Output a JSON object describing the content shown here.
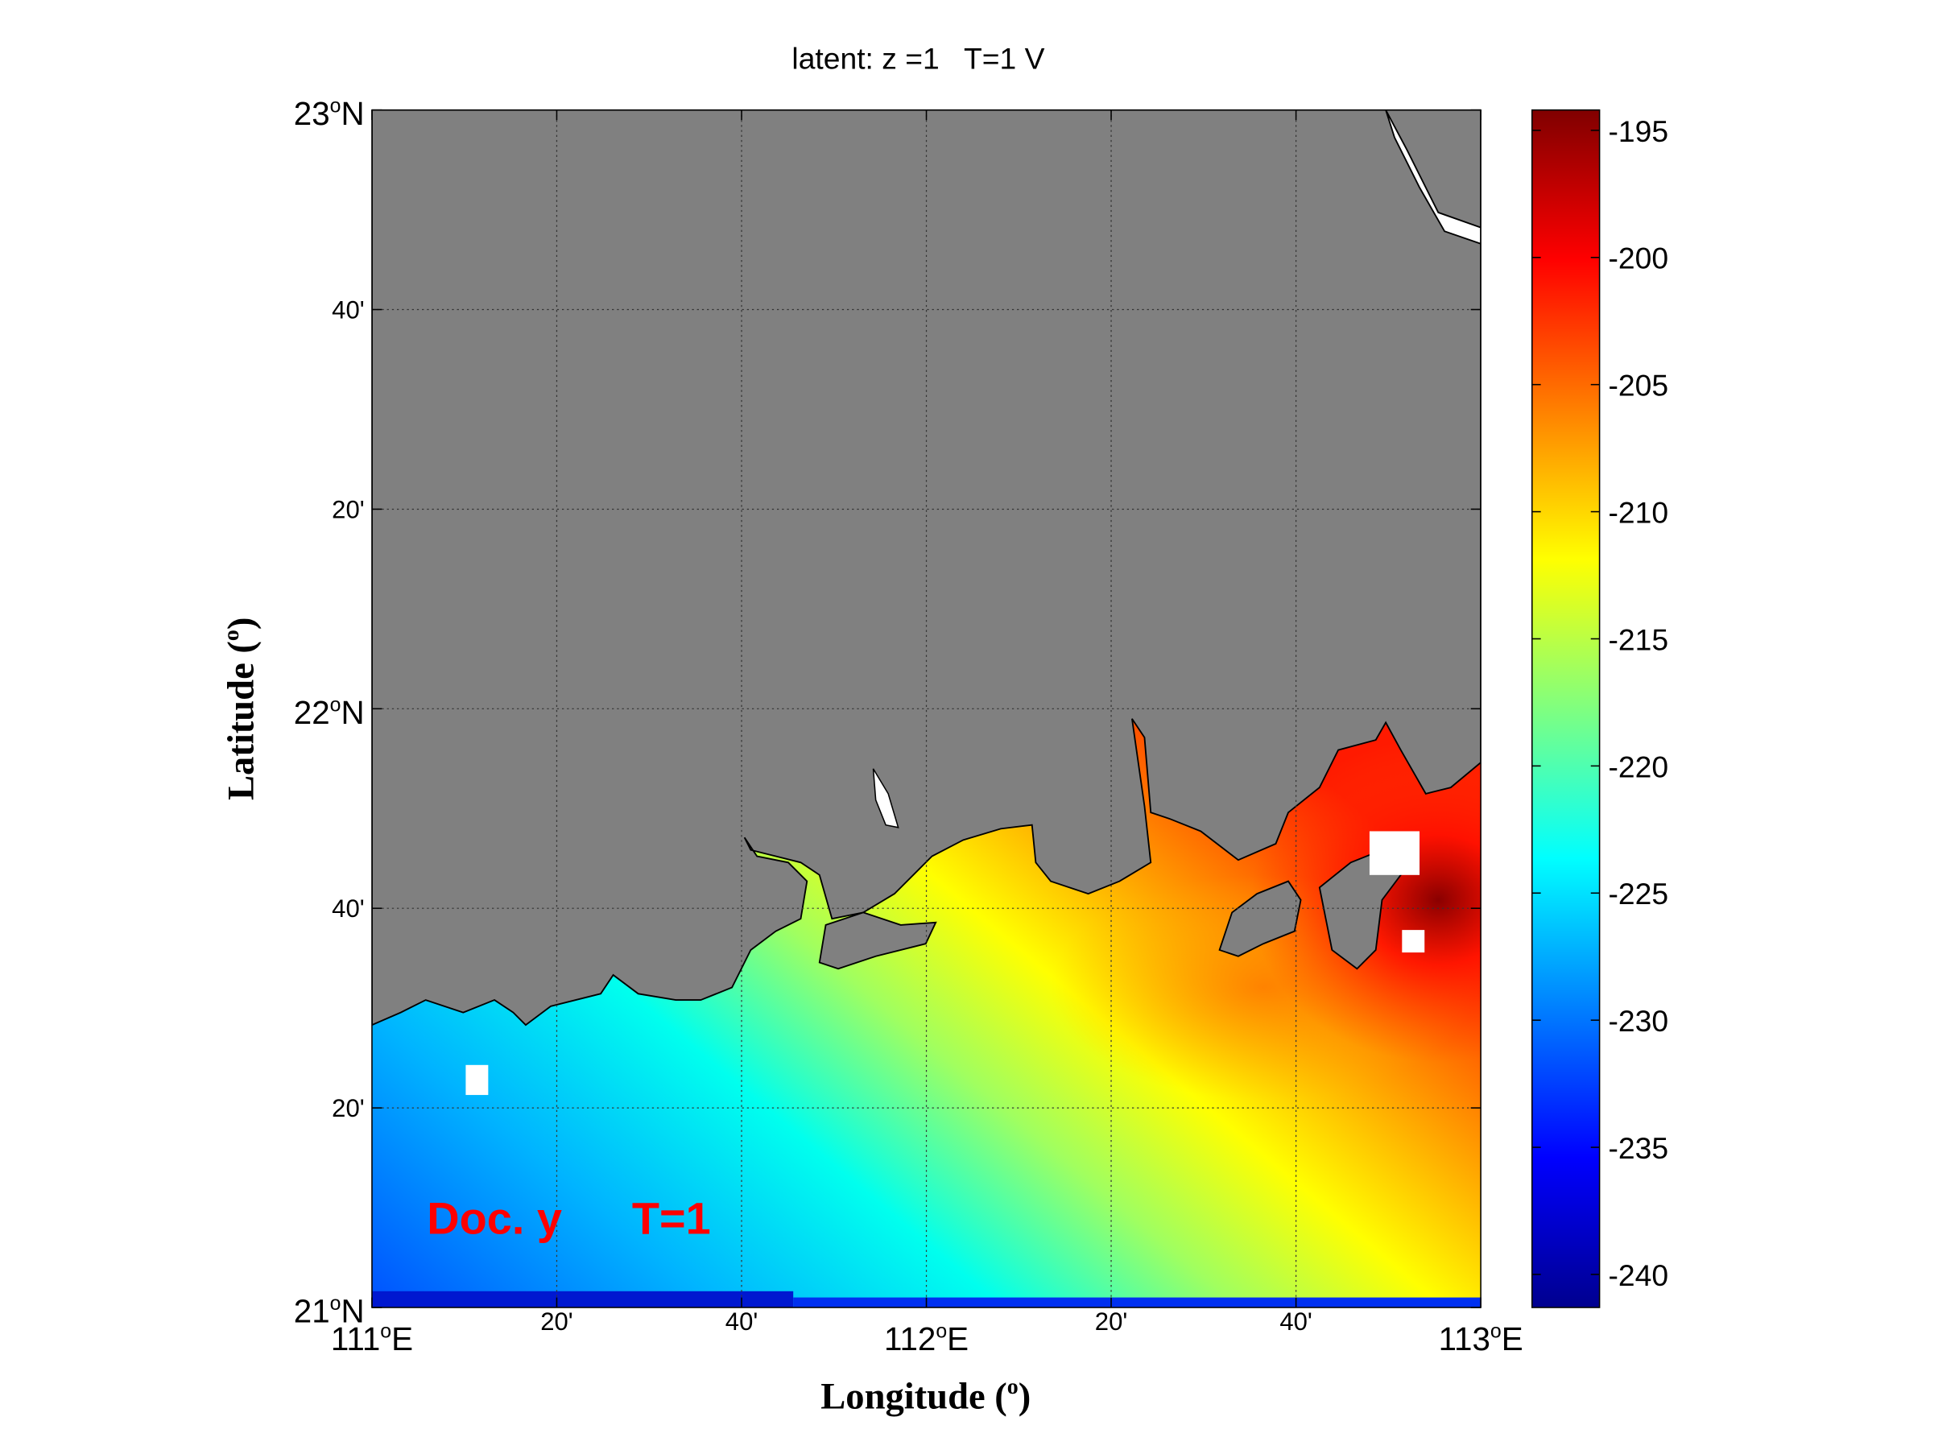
{
  "chart_data": {
    "type": "heatmap",
    "title": "latent: z =1   T=1 V",
    "xlabel": "Longitude (o)",
    "ylabel": "Latitude (o)",
    "xlabel_text": "Longitude (",
    "ylabel_text": "Latitude (",
    "degree_sup": "o",
    "label_close": ")",
    "xlim": [
      111,
      113
    ],
    "ylim": [
      21,
      23
    ],
    "x_ticks": [
      {
        "value": 111,
        "main": "111",
        "sup": "o",
        "suffix": "E"
      },
      {
        "value": 111.3333,
        "main": "20'",
        "sup": "",
        "suffix": ""
      },
      {
        "value": 111.6667,
        "main": "40'",
        "sup": "",
        "suffix": ""
      },
      {
        "value": 112,
        "main": "112",
        "sup": "o",
        "suffix": "E"
      },
      {
        "value": 112.3333,
        "main": "20'",
        "sup": "",
        "suffix": ""
      },
      {
        "value": 112.6667,
        "main": "40'",
        "sup": "",
        "suffix": ""
      },
      {
        "value": 113,
        "main": "113",
        "sup": "o",
        "suffix": "E"
      }
    ],
    "y_ticks": [
      {
        "value": 21,
        "main": "21",
        "sup": "o",
        "suffix": "N"
      },
      {
        "value": 21.3333,
        "main": "20'",
        "sup": "",
        "suffix": ""
      },
      {
        "value": 21.6667,
        "main": "40'",
        "sup": "",
        "suffix": ""
      },
      {
        "value": 22,
        "main": "22",
        "sup": "o",
        "suffix": "N"
      },
      {
        "value": 22.3333,
        "main": "20'",
        "sup": "",
        "suffix": ""
      },
      {
        "value": 22.6667,
        "main": "40'",
        "sup": "",
        "suffix": ""
      },
      {
        "value": 23,
        "main": "23",
        "sup": "o",
        "suffix": "N"
      }
    ],
    "grid": true,
    "colorbar": {
      "range": [
        -241.3,
        -194.2
      ],
      "ticks": [
        -195,
        -200,
        -205,
        -210,
        -215,
        -220,
        -225,
        -230,
        -235,
        -240
      ],
      "colormap": "jet",
      "location": "right"
    },
    "value_summary": "Field ranges from about -240 at the southern (bottom-left) edge to about -195 near 112.9E 21.7N; land masked gray.",
    "annotations": [
      {
        "text": "Doc. y",
        "color": "#ff0000"
      },
      {
        "text": "T=1",
        "color": "#ff0000"
      }
    ]
  }
}
